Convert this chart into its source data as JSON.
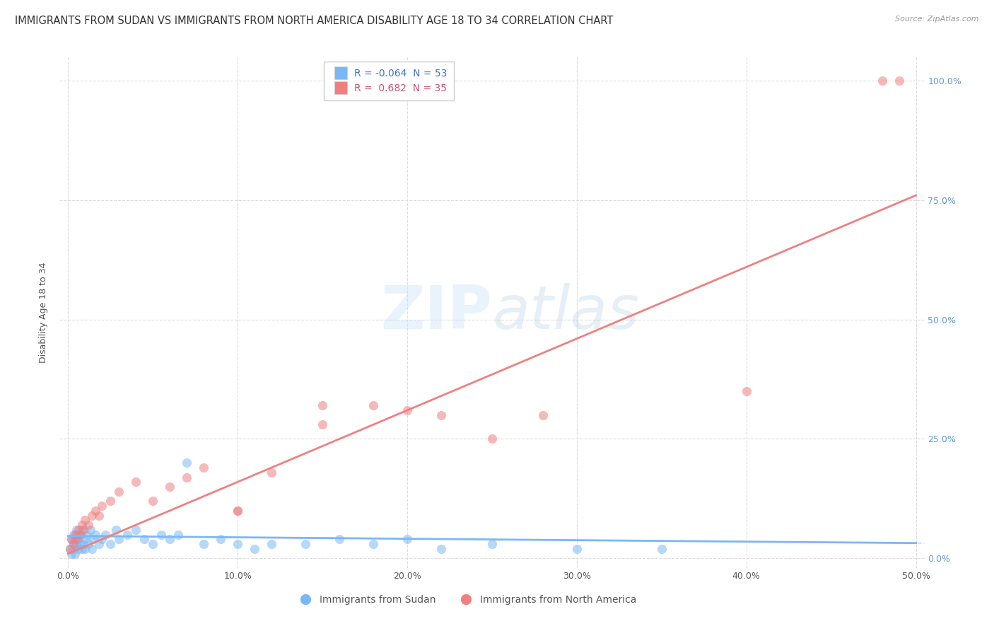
{
  "title": "IMMIGRANTS FROM SUDAN VS IMMIGRANTS FROM NORTH AMERICA DISABILITY AGE 18 TO 34 CORRELATION CHART",
  "source": "Source: ZipAtlas.com",
  "ylabel": "Disability Age 18 to 34",
  "watermark": "ZIPatlas",
  "sudan_R": -0.064,
  "sudan_N": 53,
  "na_R": 0.682,
  "na_N": 35,
  "ytick_labels": [
    "0.0%",
    "25.0%",
    "50.0%",
    "75.0%",
    "100.0%"
  ],
  "ytick_values": [
    0.0,
    0.25,
    0.5,
    0.75,
    1.0
  ],
  "xtick_labels": [
    "0.0%",
    "10.0%",
    "20.0%",
    "30.0%",
    "40.0%",
    "50.0%"
  ],
  "xtick_values": [
    0.0,
    0.1,
    0.2,
    0.3,
    0.4,
    0.5
  ],
  "xlim": [
    -0.005,
    0.505
  ],
  "ylim": [
    -0.02,
    1.05
  ],
  "sudan_color": "#7ab8f5",
  "na_color": "#f08080",
  "sudan_legend": "Immigrants from Sudan",
  "na_legend": "Immigrants from North America",
  "background_color": "#ffffff",
  "grid_color": "#dddddd",
  "right_tick_color": "#5b9bd5",
  "title_fontsize": 10.5,
  "axis_label_fontsize": 9,
  "tick_fontsize": 9,
  "legend_fontsize": 10,
  "scatter_size": 90,
  "scatter_alpha": 0.55,
  "sudan_scatter_x": [
    0.001,
    0.002,
    0.002,
    0.003,
    0.003,
    0.003,
    0.004,
    0.004,
    0.005,
    0.005,
    0.005,
    0.006,
    0.006,
    0.007,
    0.007,
    0.008,
    0.008,
    0.009,
    0.01,
    0.01,
    0.011,
    0.012,
    0.013,
    0.014,
    0.015,
    0.016,
    0.018,
    0.02,
    0.022,
    0.025,
    0.028,
    0.03,
    0.035,
    0.04,
    0.045,
    0.05,
    0.055,
    0.06,
    0.065,
    0.07,
    0.08,
    0.09,
    0.1,
    0.11,
    0.12,
    0.14,
    0.16,
    0.18,
    0.2,
    0.22,
    0.25,
    0.3,
    0.35
  ],
  "sudan_scatter_y": [
    0.02,
    0.04,
    0.01,
    0.05,
    0.02,
    0.03,
    0.04,
    0.01,
    0.05,
    0.03,
    0.06,
    0.02,
    0.04,
    0.03,
    0.05,
    0.02,
    0.06,
    0.03,
    0.04,
    0.02,
    0.05,
    0.03,
    0.06,
    0.02,
    0.04,
    0.05,
    0.03,
    0.04,
    0.05,
    0.03,
    0.06,
    0.04,
    0.05,
    0.06,
    0.04,
    0.03,
    0.05,
    0.04,
    0.05,
    0.2,
    0.03,
    0.04,
    0.03,
    0.02,
    0.03,
    0.03,
    0.04,
    0.03,
    0.04,
    0.02,
    0.03,
    0.02,
    0.02
  ],
  "na_scatter_x": [
    0.001,
    0.002,
    0.003,
    0.004,
    0.005,
    0.006,
    0.007,
    0.008,
    0.009,
    0.01,
    0.012,
    0.014,
    0.016,
    0.018,
    0.02,
    0.025,
    0.03,
    0.04,
    0.05,
    0.06,
    0.07,
    0.08,
    0.1,
    0.12,
    0.15,
    0.18,
    0.2,
    0.22,
    0.48,
    0.49,
    0.25,
    0.28,
    0.15,
    0.4,
    0.1
  ],
  "na_scatter_y": [
    0.02,
    0.04,
    0.03,
    0.05,
    0.04,
    0.06,
    0.05,
    0.07,
    0.06,
    0.08,
    0.07,
    0.09,
    0.1,
    0.09,
    0.11,
    0.12,
    0.14,
    0.16,
    0.12,
    0.15,
    0.17,
    0.19,
    0.1,
    0.18,
    0.28,
    0.32,
    0.31,
    0.3,
    1.0,
    1.0,
    0.25,
    0.3,
    0.32,
    0.35,
    0.1
  ],
  "sudan_trend_x": [
    0.0,
    0.5
  ],
  "sudan_trend_y_intercept": 0.047,
  "sudan_trend_slope": -0.03,
  "na_trend_x": [
    0.0,
    0.5
  ],
  "na_trend_y_intercept": 0.01,
  "na_trend_slope": 1.5
}
